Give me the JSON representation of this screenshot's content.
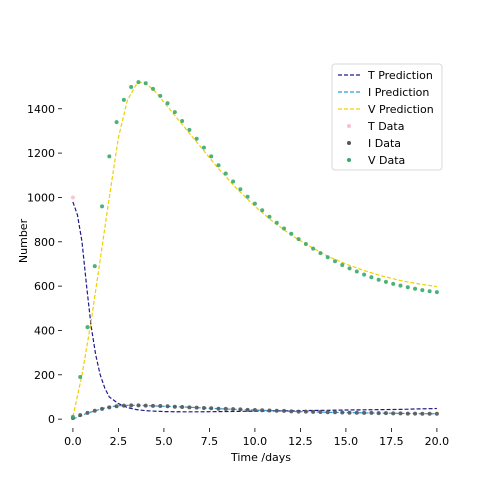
{
  "chart_data": {
    "type": "line",
    "xlabel": "Time /days",
    "ylabel": "Number",
    "xlim": [
      -0.6,
      20.5
    ],
    "ylim": [
      -40,
      1620
    ],
    "xticks": [
      0.0,
      2.5,
      5.0,
      7.5,
      10.0,
      12.5,
      15.0,
      17.5,
      20.0
    ],
    "xtick_labels": [
      "0.0",
      "2.5",
      "5.0",
      "7.5",
      "10.0",
      "12.5",
      "15.0",
      "17.5",
      "20.0"
    ],
    "yticks": [
      0,
      200,
      400,
      600,
      800,
      1000,
      1200,
      1400
    ],
    "ytick_labels": [
      "0",
      "200",
      "400",
      "600",
      "800",
      "1000",
      "1200",
      "1400"
    ],
    "grid": false,
    "legend_position": "top-right",
    "legend": [
      "T Prediction",
      "I Prediction",
      "V Prediction",
      "T Data",
      "I Data",
      "V Data"
    ],
    "colors": {
      "t_prediction": "#1f1a8a",
      "i_prediction": "#2a9fd6",
      "v_prediction": "#f0d000",
      "t_data": "#f9c0cb",
      "i_data": "#555555",
      "v_data": "#3aa86b"
    },
    "series": [
      {
        "name": "T Prediction",
        "style": "dashed",
        "x": [
          0.0,
          0.25,
          0.5,
          0.75,
          1.0,
          1.25,
          1.5,
          1.75,
          2.0,
          2.5,
          3.0,
          3.5,
          4.0,
          5.0,
          6.0,
          7.0,
          8.0,
          9.0,
          10.0,
          11.0,
          12.0,
          13.0,
          14.0,
          15.0,
          16.0,
          17.0,
          18.0,
          19.0,
          20.0
        ],
        "y": [
          980,
          920,
          800,
          600,
          420,
          290,
          200,
          140,
          100,
          70,
          52,
          43,
          38,
          34,
          33,
          33,
          34,
          35,
          36,
          37,
          38,
          39,
          40,
          41,
          42,
          43,
          44,
          46,
          48
        ]
      },
      {
        "name": "I Prediction",
        "style": "dashed",
        "x": [
          0.0,
          0.5,
          1.0,
          1.5,
          2.0,
          2.5,
          3.0,
          3.5,
          4.0,
          5.0,
          6.0,
          7.0,
          8.0,
          9.0,
          10.0,
          11.0,
          12.0,
          13.0,
          14.0,
          15.0,
          16.0,
          17.0,
          18.0,
          19.0,
          20.0
        ],
        "y": [
          0,
          18,
          32,
          45,
          55,
          60,
          62,
          62,
          61,
          58,
          55,
          51,
          47,
          44,
          41,
          38,
          35,
          33,
          31,
          30,
          28,
          27,
          26,
          25,
          24
        ]
      },
      {
        "name": "V Prediction",
        "style": "dashed",
        "x": [
          0.0,
          0.5,
          1.0,
          1.5,
          2.0,
          2.5,
          3.0,
          3.5,
          3.75,
          4.0,
          4.5,
          5.0,
          5.5,
          6.0,
          7.0,
          8.0,
          9.0,
          10.0,
          11.0,
          12.0,
          13.0,
          14.0,
          15.0,
          16.0,
          17.0,
          18.0,
          19.0,
          20.0
        ],
        "y": [
          10,
          200,
          440,
          720,
          1000,
          1270,
          1440,
          1512,
          1520,
          1514,
          1480,
          1430,
          1380,
          1330,
          1230,
          1130,
          1040,
          960,
          890,
          830,
          780,
          735,
          700,
          670,
          645,
          625,
          610,
          598
        ]
      }
    ],
    "scatter_series": [
      {
        "name": "T Data",
        "x": [
          0.0
        ],
        "y": [
          1000
        ]
      },
      {
        "name": "I Data",
        "x": [
          0.0,
          0.4,
          0.8,
          1.2,
          1.6,
          2.0,
          2.4,
          2.8,
          3.2,
          3.6,
          4.0,
          4.4,
          4.8,
          5.2,
          5.6,
          6.0,
          6.4,
          6.8,
          7.2,
          7.6,
          8.0,
          8.4,
          8.8,
          9.2,
          9.6,
          10.0,
          10.4,
          10.8,
          11.2,
          11.6,
          12.0,
          12.4,
          12.8,
          13.2,
          13.6,
          14.0,
          14.4,
          14.8,
          15.2,
          15.6,
          16.0,
          16.4,
          16.8,
          17.2,
          17.6,
          18.0,
          18.4,
          18.8,
          19.2,
          19.6,
          20.0
        ],
        "y": [
          5,
          18,
          28,
          38,
          46,
          53,
          58,
          61,
          62,
          62,
          61,
          60,
          59,
          58,
          56,
          55,
          53,
          52,
          50,
          49,
          47,
          46,
          45,
          44,
          42,
          41,
          40,
          39,
          38,
          37,
          35,
          34,
          34,
          33,
          32,
          31,
          31,
          30,
          29,
          29,
          28,
          28,
          27,
          27,
          26,
          26,
          25,
          25,
          24,
          24,
          24
        ]
      },
      {
        "name": "V Data",
        "x": [
          0.0,
          0.4,
          0.8,
          1.2,
          1.6,
          2.0,
          2.4,
          2.8,
          3.2,
          3.6,
          4.0,
          4.4,
          4.8,
          5.2,
          5.6,
          6.0,
          6.4,
          6.8,
          7.2,
          7.6,
          8.0,
          8.4,
          8.8,
          9.2,
          9.6,
          10.0,
          10.4,
          10.8,
          11.2,
          11.6,
          12.0,
          12.4,
          12.8,
          13.2,
          13.6,
          14.0,
          14.4,
          14.8,
          15.2,
          15.6,
          16.0,
          16.4,
          16.8,
          17.2,
          17.6,
          18.0,
          18.4,
          18.8,
          19.2,
          19.6,
          20.0
        ],
        "y": [
          10,
          190,
          415,
          690,
          960,
          1185,
          1340,
          1440,
          1498,
          1520,
          1515,
          1490,
          1458,
          1425,
          1385,
          1345,
          1305,
          1265,
          1225,
          1185,
          1145,
          1108,
          1072,
          1037,
          1003,
          972,
          942,
          913,
          886,
          860,
          836,
          812,
          790,
          769,
          749,
          730,
          712,
          695,
          680,
          666,
          652,
          640,
          629,
          619,
          610,
          602,
          595,
          588,
          582,
          577,
          573
        ]
      }
    ]
  }
}
